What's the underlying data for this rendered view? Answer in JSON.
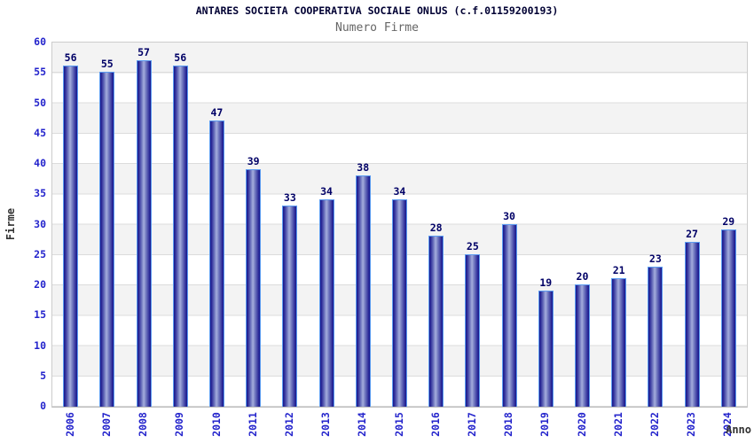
{
  "chart_data": {
    "type": "bar",
    "title": "ANTARES SOCIETA COOPERATIVA SOCIALE ONLUS (c.f.01159200193)",
    "subtitle": "Numero Firme",
    "categories": [
      "2006",
      "2007",
      "2008",
      "2009",
      "2010",
      "2011",
      "2012",
      "2013",
      "2014",
      "2015",
      "2016",
      "2017",
      "2018",
      "2019",
      "2020",
      "2021",
      "2022",
      "2023",
      "2024"
    ],
    "values": [
      56,
      55,
      57,
      56,
      47,
      39,
      33,
      34,
      38,
      34,
      28,
      25,
      30,
      19,
      20,
      21,
      23,
      27,
      29
    ],
    "xlabel": "Anno",
    "ylabel": "Firme",
    "ylim": [
      0,
      60
    ],
    "y_ticks": [
      0,
      5,
      10,
      15,
      20,
      25,
      30,
      35,
      40,
      45,
      50,
      55,
      60
    ],
    "grid": "alternating horizontal bands every 5 units with light gridlines",
    "legend_position": "none",
    "colors": {
      "bar_dark": "#17178c",
      "bar_light": "#a6aede",
      "bar_border": "#5b9bf0",
      "value_label": "#000066",
      "tick_label": "#2424cc",
      "axis_title": "#333333",
      "title": "#000033",
      "subtitle": "#666666",
      "band_gray": "#f3f3f3",
      "band_white": "#ffffff",
      "plot_border": "#cccccc"
    }
  }
}
